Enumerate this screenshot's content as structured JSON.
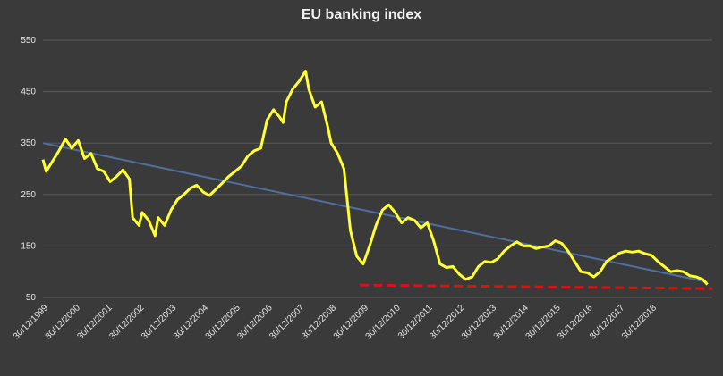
{
  "chart_data": {
    "type": "line",
    "title": "EU banking index",
    "xlabel": "",
    "ylabel": "",
    "ylim": [
      50,
      550
    ],
    "y_ticks": [
      50,
      150,
      250,
      350,
      450,
      550
    ],
    "x_tick_labels": [
      "30/12/1999",
      "30/12/2000",
      "30/12/2001",
      "30/12/2002",
      "30/12/2003",
      "30/12/2004",
      "30/12/2005",
      "30/12/2006",
      "30/12/2007",
      "30/12/2008",
      "30/12/2009",
      "30/12/2010",
      "30/12/2011",
      "30/12/2012",
      "30/12/2013",
      "30/12/2014",
      "30/12/2015",
      "30/12/2016",
      "30/12/2017",
      "30/12/2018"
    ],
    "grid": true,
    "legend": "none",
    "colors": {
      "background": "#3a3a3a",
      "grid": "#5a5a5a",
      "index": "#ffff33",
      "trend": "#4f6f9f",
      "support": "#e01010"
    },
    "series": [
      {
        "values_x_years": [
          1999.0,
          1999.1,
          1999.3,
          1999.5,
          1999.7,
          1999.9,
          2000.1,
          2000.3,
          2000.5,
          2000.7,
          2000.9,
          2001.1,
          2001.3,
          2001.5,
          2001.7,
          2001.8,
          2002.0,
          2002.1,
          2002.3,
          2002.5,
          2002.6,
          2002.8,
          2003.0,
          2003.2,
          2003.4,
          2003.6,
          2003.8,
          2004.0,
          2004.2,
          2004.4,
          2004.6,
          2004.8,
          2005.0,
          2005.2,
          2005.4,
          2005.6,
          2005.8,
          2006.0,
          2006.2,
          2006.4,
          2006.5,
          2006.6,
          2006.8,
          2007.0,
          2007.2,
          2007.3,
          2007.5,
          2007.7,
          2007.9,
          2008.0,
          2008.2,
          2008.4,
          2008.5,
          2008.6,
          2008.8,
          2009.0,
          2009.2,
          2009.4,
          2009.6,
          2009.8,
          2010.0,
          2010.2,
          2010.4,
          2010.6,
          2010.8,
          2011.0,
          2011.2,
          2011.4,
          2011.6,
          2011.8,
          2012.0,
          2012.2,
          2012.4,
          2012.6,
          2012.8,
          2013.0,
          2013.2,
          2013.4,
          2013.6,
          2013.8,
          2014.0,
          2014.2,
          2014.4,
          2014.6,
          2014.8,
          2015.0,
          2015.2,
          2015.4,
          2015.6,
          2015.8,
          2016.0,
          2016.2,
          2016.4,
          2016.6,
          2016.8,
          2017.0,
          2017.2,
          2017.4,
          2017.6,
          2017.8,
          2018.0,
          2018.2,
          2018.4,
          2018.6,
          2018.8,
          2019.0,
          2019.2,
          2019.4,
          2019.6,
          2019.75
        ],
        "values": [
          318,
          295,
          315,
          335,
          358,
          340,
          355,
          320,
          330,
          300,
          295,
          275,
          285,
          298,
          280,
          205,
          190,
          215,
          200,
          170,
          205,
          190,
          220,
          240,
          250,
          262,
          268,
          255,
          248,
          260,
          272,
          285,
          295,
          305,
          325,
          335,
          340,
          395,
          415,
          400,
          390,
          430,
          455,
          470,
          490,
          455,
          420,
          430,
          380,
          350,
          330,
          300,
          240,
          180,
          130,
          115,
          150,
          190,
          220,
          230,
          215,
          195,
          205,
          200,
          185,
          195,
          160,
          115,
          108,
          110,
          95,
          85,
          90,
          110,
          120,
          118,
          125,
          140,
          150,
          158,
          150,
          150,
          145,
          148,
          150,
          160,
          155,
          140,
          120,
          100,
          98,
          90,
          100,
          120,
          128,
          136,
          140,
          138,
          140,
          135,
          132,
          120,
          110,
          100,
          102,
          100,
          92,
          90,
          85,
          75
        ]
      },
      {
        "x_years": [
          1999.0,
          2019.75
        ],
        "values": [
          350,
          80
        ]
      },
      {
        "x_years": [
          2008.9,
          2019.9
        ],
        "values": [
          74,
          67
        ]
      }
    ]
  }
}
